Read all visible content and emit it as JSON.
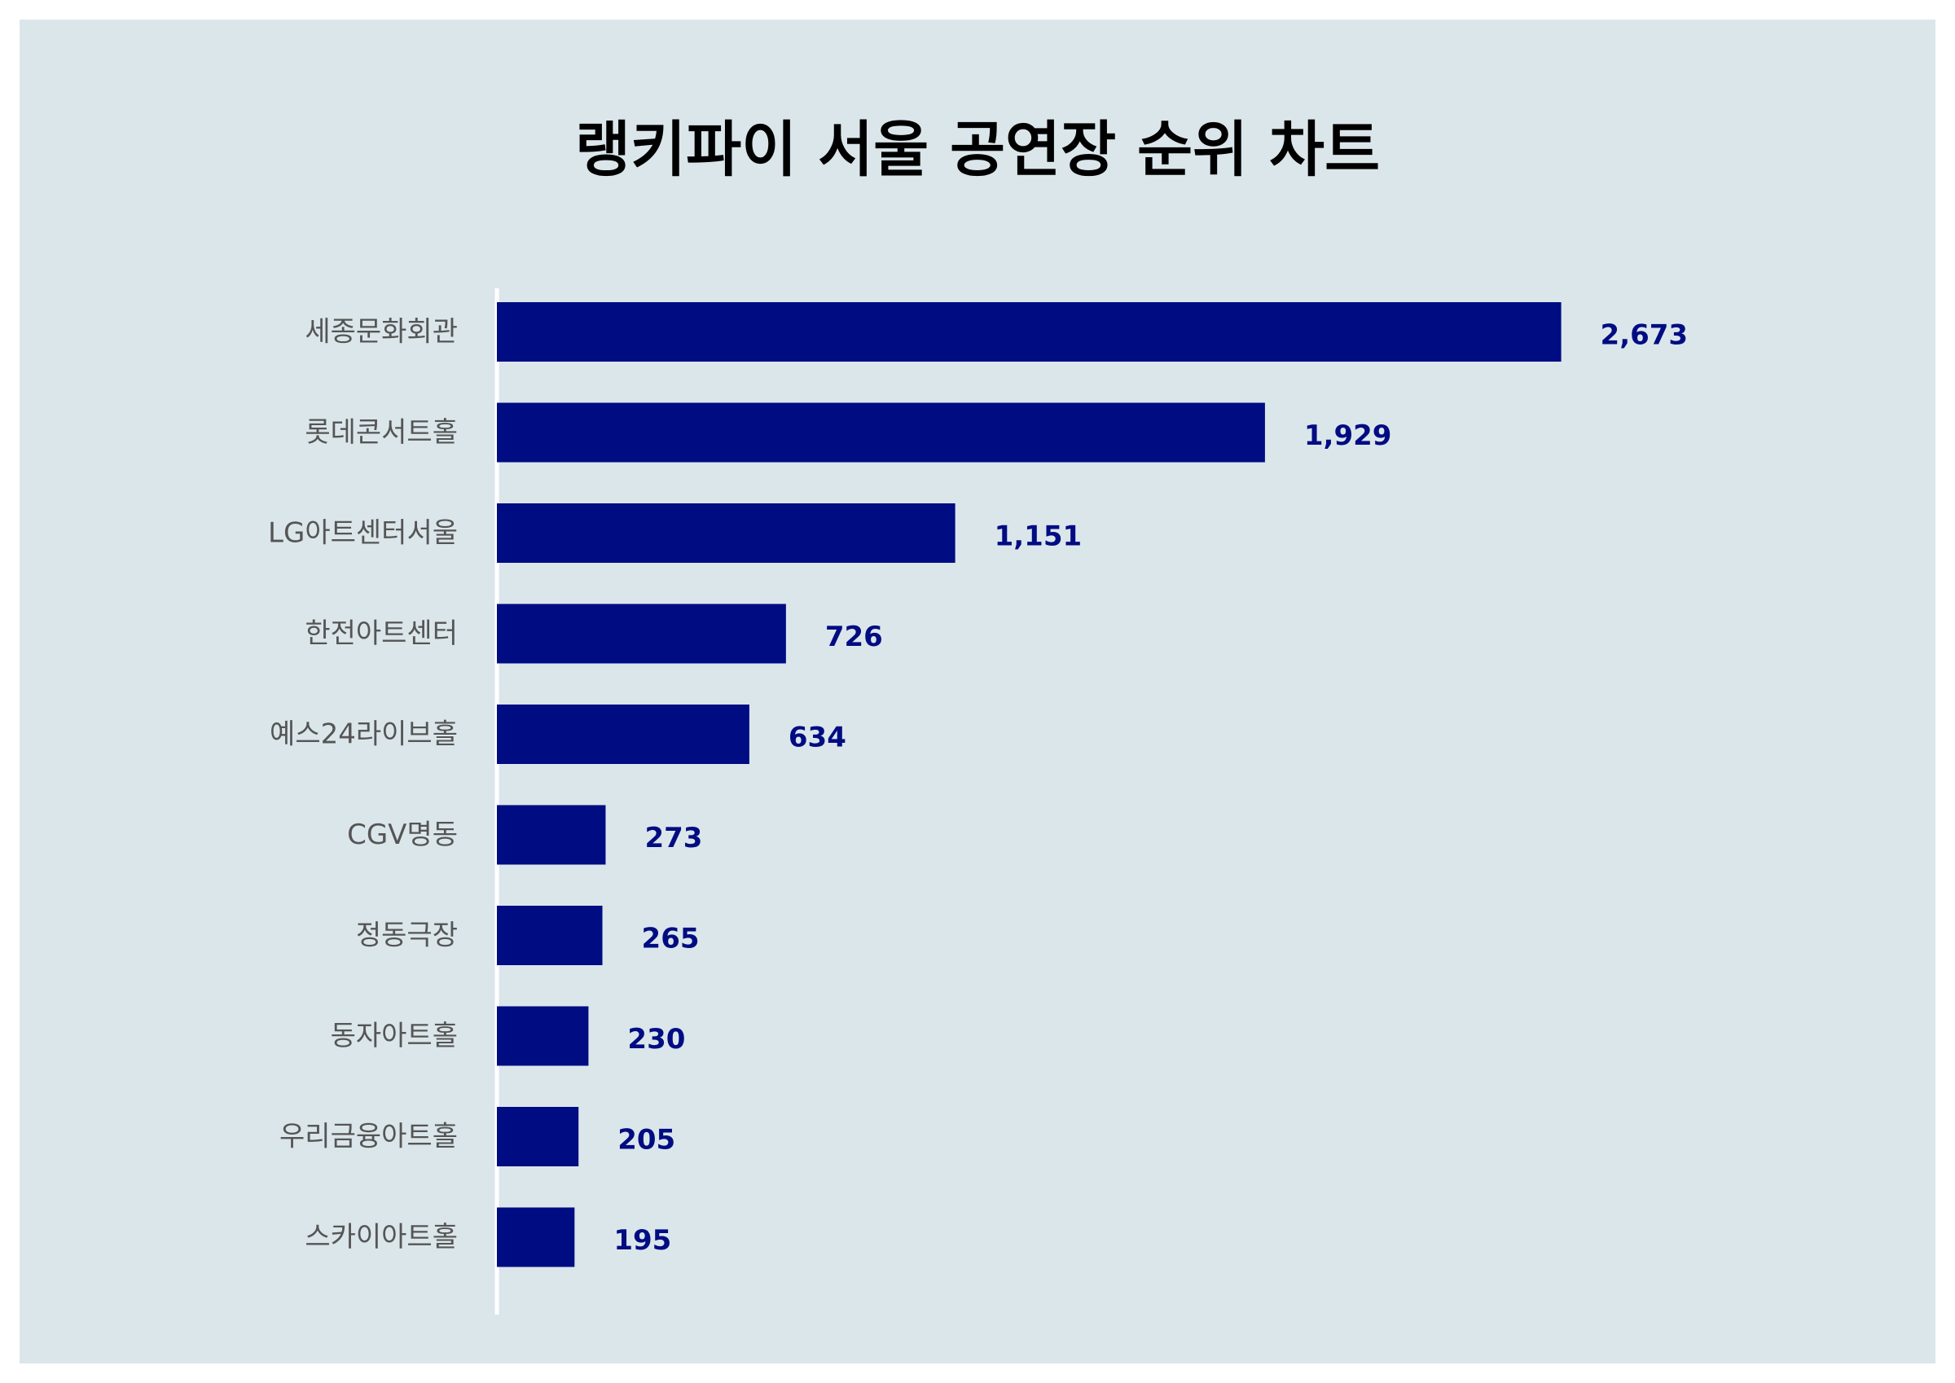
{
  "chart_data": {
    "type": "bar",
    "orientation": "horizontal",
    "title": "랭키파이 서울 공연장 순위 차트",
    "categories": [
      "세종문화회관",
      "롯데콘서트홀",
      "LG아트센터서울",
      "한전아트센터",
      "예스24라이브홀",
      "CGV명동",
      "정동극장",
      "동자아트홀",
      "우리금융아트홀",
      "스카이아트홀"
    ],
    "values": [
      2673,
      1929,
      1151,
      726,
      634,
      273,
      265,
      230,
      205,
      195
    ],
    "value_labels": [
      "2,673",
      "1,929",
      "1,151",
      "726",
      "634",
      "273",
      "265",
      "230",
      "205",
      "195"
    ],
    "xlim": [
      0,
      3000
    ],
    "grid": false,
    "legend": "none"
  },
  "colors": {
    "background": "#dbe6eb",
    "bar": "#000c82",
    "value_label": "#000c82",
    "category_label": "#555555",
    "title": "#000000",
    "axis": "#ffffff"
  }
}
